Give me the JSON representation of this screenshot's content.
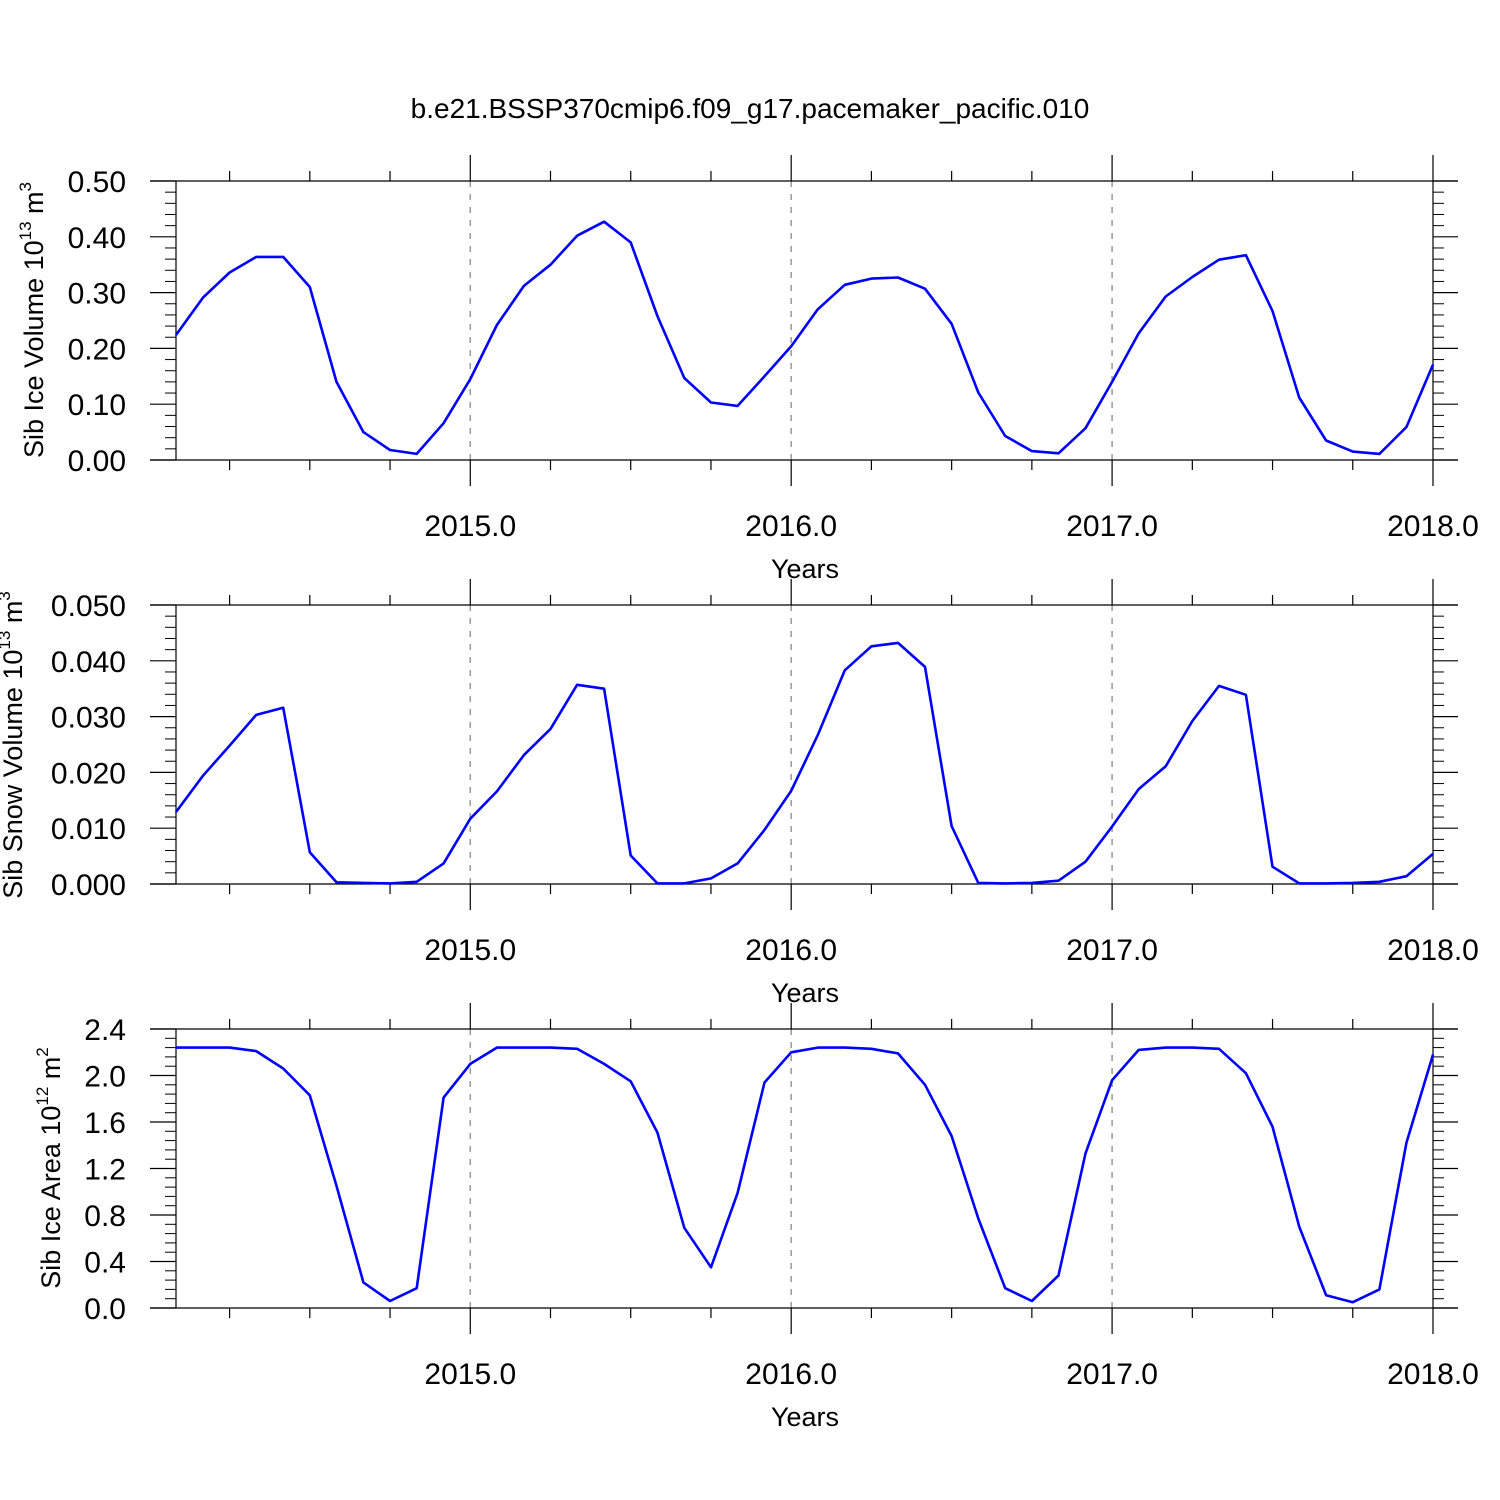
{
  "title": "b.e21.BSSP370cmip6.f09_g17.pacemaker_pacific.010",
  "colors": {
    "line": "#0000ff",
    "axis": "#000000",
    "grid": "#999999"
  },
  "chart_data": [
    {
      "type": "line",
      "ylabel": "Sib Ice Volume 10",
      "ylabel_exp": "13",
      "ylabel_unit": " m",
      "ylabel_unit_exp": "3",
      "xlabel": "Years",
      "xlim": [
        2014.083,
        2018.0
      ],
      "ylim": [
        0,
        0.5
      ],
      "xticks": [
        "2015.0",
        "2016.0",
        "2017.0",
        "2018.0"
      ],
      "yticks": [
        "0.00",
        "0.10",
        "0.20",
        "0.30",
        "0.40",
        "0.50"
      ],
      "grid": "dashed vertical at major x ticks",
      "series": [
        {
          "x": [
            2014.083,
            2014.167,
            2014.25,
            2014.333,
            2014.417,
            2014.5,
            2014.583,
            2014.667,
            2014.75,
            2014.833,
            2014.917,
            2015.0,
            2015.083,
            2015.167,
            2015.25,
            2015.333,
            2015.417,
            2015.5,
            2015.583,
            2015.667,
            2015.75,
            2015.833,
            2015.917,
            2016.0,
            2016.083,
            2016.167,
            2016.25,
            2016.333,
            2016.417,
            2016.5,
            2016.583,
            2016.667,
            2016.75,
            2016.833,
            2016.917,
            2017.0,
            2017.083,
            2017.167,
            2017.25,
            2017.333,
            2017.417,
            2017.5,
            2017.583,
            2017.667,
            2017.75,
            2017.833,
            2017.917,
            2018.0
          ],
          "values": [
            0.224,
            0.291,
            0.336,
            0.364,
            0.364,
            0.31,
            0.14,
            0.05,
            0.018,
            0.011,
            0.066,
            0.145,
            0.242,
            0.312,
            0.35,
            0.402,
            0.427,
            0.39,
            0.258,
            0.147,
            0.103,
            0.097,
            0.15,
            0.204,
            0.27,
            0.314,
            0.325,
            0.327,
            0.307,
            0.244,
            0.121,
            0.043,
            0.016,
            0.012,
            0.057,
            0.14,
            0.227,
            0.293,
            0.328,
            0.359,
            0.367,
            0.267,
            0.112,
            0.035,
            0.015,
            0.011,
            0.059,
            0.171
          ]
        }
      ]
    },
    {
      "type": "line",
      "ylabel": "Sib Snow Volume 10",
      "ylabel_exp": "13",
      "ylabel_unit": " m",
      "ylabel_unit_exp": "3",
      "xlabel": "Years",
      "xlim": [
        2014.083,
        2018.0
      ],
      "ylim": [
        0,
        0.05
      ],
      "xticks": [
        "2015.0",
        "2016.0",
        "2017.0",
        "2018.0"
      ],
      "yticks": [
        "0.000",
        "0.010",
        "0.020",
        "0.030",
        "0.040",
        "0.050"
      ],
      "grid": "dashed vertical at major x ticks",
      "series": [
        {
          "x": [
            2014.083,
            2014.167,
            2014.25,
            2014.333,
            2014.417,
            2014.5,
            2014.583,
            2014.667,
            2014.75,
            2014.833,
            2014.917,
            2015.0,
            2015.083,
            2015.167,
            2015.25,
            2015.333,
            2015.417,
            2015.5,
            2015.583,
            2015.667,
            2015.75,
            2015.833,
            2015.917,
            2016.0,
            2016.083,
            2016.167,
            2016.25,
            2016.333,
            2016.417,
            2016.5,
            2016.583,
            2016.667,
            2016.75,
            2016.833,
            2016.917,
            2017.0,
            2017.083,
            2017.167,
            2017.25,
            2017.333,
            2017.417,
            2017.5,
            2017.583,
            2017.667,
            2017.75,
            2017.833,
            2017.917,
            2018.0
          ],
          "values": [
            0.0129,
            0.0194,
            0.0248,
            0.0303,
            0.0316,
            0.0057,
            0.0003,
            0.0002,
            0.0001,
            0.0004,
            0.0037,
            0.0117,
            0.0166,
            0.0231,
            0.0278,
            0.0357,
            0.035,
            0.0051,
            0.0001,
            0.0001,
            0.001,
            0.0037,
            0.0097,
            0.0167,
            0.0267,
            0.0383,
            0.0426,
            0.0432,
            0.0389,
            0.0104,
            0.0002,
            0.0001,
            0.0002,
            0.0006,
            0.004,
            0.0103,
            0.017,
            0.0211,
            0.0292,
            0.0355,
            0.0339,
            0.0031,
            0.0001,
            0.0001,
            0.0002,
            0.0004,
            0.0014,
            0.0054
          ]
        }
      ]
    },
    {
      "type": "line",
      "ylabel": "Sib Ice Area 10",
      "ylabel_exp": "12",
      "ylabel_unit": " m",
      "ylabel_unit_exp": "2",
      "xlabel": "Years",
      "xlim": [
        2014.083,
        2018.0
      ],
      "ylim": [
        0,
        2.4
      ],
      "xticks": [
        "2015.0",
        "2016.0",
        "2017.0",
        "2018.0"
      ],
      "yticks": [
        "0.0",
        "0.4",
        "0.8",
        "1.2",
        "1.6",
        "2.0",
        "2.4"
      ],
      "grid": "dashed vertical at major x ticks",
      "series": [
        {
          "x": [
            2014.083,
            2014.167,
            2014.25,
            2014.333,
            2014.417,
            2014.5,
            2014.583,
            2014.667,
            2014.75,
            2014.833,
            2014.917,
            2015.0,
            2015.083,
            2015.167,
            2015.25,
            2015.333,
            2015.417,
            2015.5,
            2015.583,
            2015.667,
            2015.75,
            2015.833,
            2015.917,
            2016.0,
            2016.083,
            2016.167,
            2016.25,
            2016.333,
            2016.417,
            2016.5,
            2016.583,
            2016.667,
            2016.75,
            2016.833,
            2016.917,
            2017.0,
            2017.083,
            2017.167,
            2017.25,
            2017.333,
            2017.417,
            2017.5,
            2017.583,
            2017.667,
            2017.75,
            2017.833,
            2017.917,
            2018.0
          ],
          "values": [
            2.24,
            2.24,
            2.24,
            2.21,
            2.06,
            1.83,
            1.05,
            0.22,
            0.06,
            0.17,
            1.81,
            2.1,
            2.24,
            2.24,
            2.24,
            2.23,
            2.1,
            1.95,
            1.51,
            0.69,
            0.35,
            0.99,
            1.94,
            2.2,
            2.24,
            2.24,
            2.23,
            2.19,
            1.92,
            1.48,
            0.77,
            0.17,
            0.06,
            0.28,
            1.33,
            1.96,
            2.22,
            2.24,
            2.24,
            2.23,
            2.02,
            1.56,
            0.7,
            0.11,
            0.05,
            0.16,
            1.42,
            2.18
          ]
        }
      ]
    }
  ]
}
